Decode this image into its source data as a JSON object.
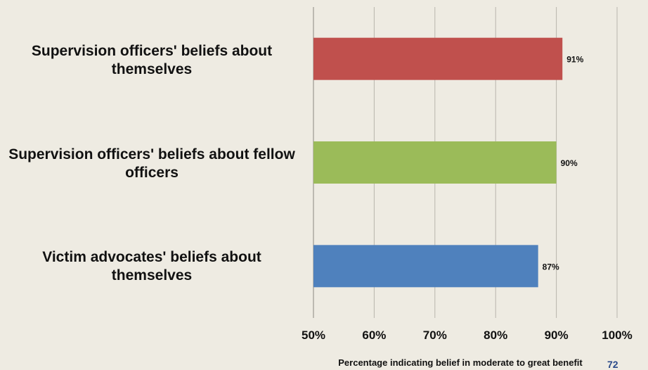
{
  "chart_data": {
    "type": "bar",
    "orientation": "horizontal",
    "categories": [
      "Supervision officers' beliefs about themselves",
      "Supervision officers' beliefs about fellow officers",
      "Victim advocates' beliefs about themselves"
    ],
    "category_lines": [
      [
        "Supervision officers' beliefs about",
        "themselves"
      ],
      [
        "Supervision officers' beliefs about fellow",
        "officers"
      ],
      [
        "Victim advocates' beliefs about",
        "themselves"
      ]
    ],
    "values": [
      91,
      90,
      87
    ],
    "data_labels": [
      "91%",
      "90%",
      "87%"
    ],
    "colors": [
      "#c0504d",
      "#9bbb59",
      "#4f81bd"
    ],
    "xlim": [
      50,
      100
    ],
    "xticks": [
      "50%",
      "60%",
      "70%",
      "80%",
      "90%",
      "100%"
    ],
    "xlabel": "Percentage indicating belief in moderate to great benefit",
    "grid": "vertical"
  },
  "page_number": "72"
}
